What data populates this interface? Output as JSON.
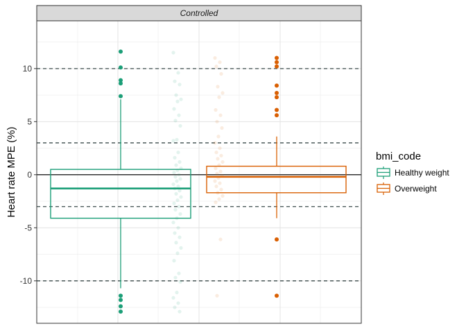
{
  "chart_data": {
    "type": "box",
    "facet": "Controlled",
    "xlabel": "",
    "ylabel": "Heart rate MPE (%)",
    "ylim": [
      -14,
      14.5
    ],
    "yticks": [
      -10,
      -5,
      0,
      5,
      10
    ],
    "grid": true,
    "legend_title": "bmi_code",
    "legend_position": "right",
    "reference_lines": [
      {
        "y": 0,
        "style": "solid"
      },
      {
        "y": 10,
        "style": "dashed"
      },
      {
        "y": 3,
        "style": "dashed"
      },
      {
        "y": -3,
        "style": "dashed"
      },
      {
        "y": -10,
        "style": "dashed"
      }
    ],
    "series": [
      {
        "name": "Healthy weight",
        "color": "#1b9e77",
        "box": {
          "lower_whisker": -10.7,
          "q1": -4.1,
          "median": -1.3,
          "q3": 0.5,
          "upper_whisker": 7.1
        },
        "outliers": [
          11.6,
          10.1,
          8.9,
          8.6,
          7.4,
          -11.4,
          -11.8,
          -12.4,
          -12.9
        ],
        "jitter": [
          11.5,
          9.6,
          8.8,
          8.5,
          7.5,
          7.1,
          6.9,
          6.2,
          5.6,
          5.1,
          4.6,
          3.3,
          3.2,
          2.1,
          1.6,
          1.2,
          0.9,
          0.6,
          0.4,
          0.2,
          0.0,
          -0.2,
          -0.4,
          -0.6,
          -0.9,
          -1.1,
          -1.3,
          -1.5,
          -1.8,
          -2.1,
          -2.4,
          -2.7,
          -3.0,
          -3.3,
          -3.7,
          -4.1,
          -4.5,
          -5.0,
          -5.5,
          -5.9,
          -6.4,
          -6.9,
          -7.4,
          -8.1,
          -9.3,
          -9.7,
          -10.1,
          -11.1,
          -11.6,
          -12.1,
          -12.5,
          -12.9
        ]
      },
      {
        "name": "Overweight",
        "color": "#d95f02",
        "box": {
          "lower_whisker": -4.1,
          "q1": -1.7,
          "median": -0.2,
          "q3": 0.8,
          "upper_whisker": 3.6
        },
        "outliers": [
          11.0,
          10.6,
          10.2,
          8.4,
          7.7,
          7.3,
          6.1,
          5.6,
          -6.1,
          -11.4
        ],
        "jitter": [
          11.0,
          10.6,
          10.2,
          9.5,
          8.3,
          7.7,
          7.3,
          6.1,
          5.6,
          5.0,
          4.4,
          3.6,
          3.0,
          2.5,
          2.1,
          1.8,
          1.5,
          1.2,
          0.9,
          0.6,
          0.3,
          0.1,
          -0.1,
          -0.3,
          -0.6,
          -0.8,
          -1.1,
          -1.4,
          -1.7,
          -2.0,
          -2.3,
          -2.6,
          -6.1,
          -11.4
        ]
      }
    ]
  }
}
